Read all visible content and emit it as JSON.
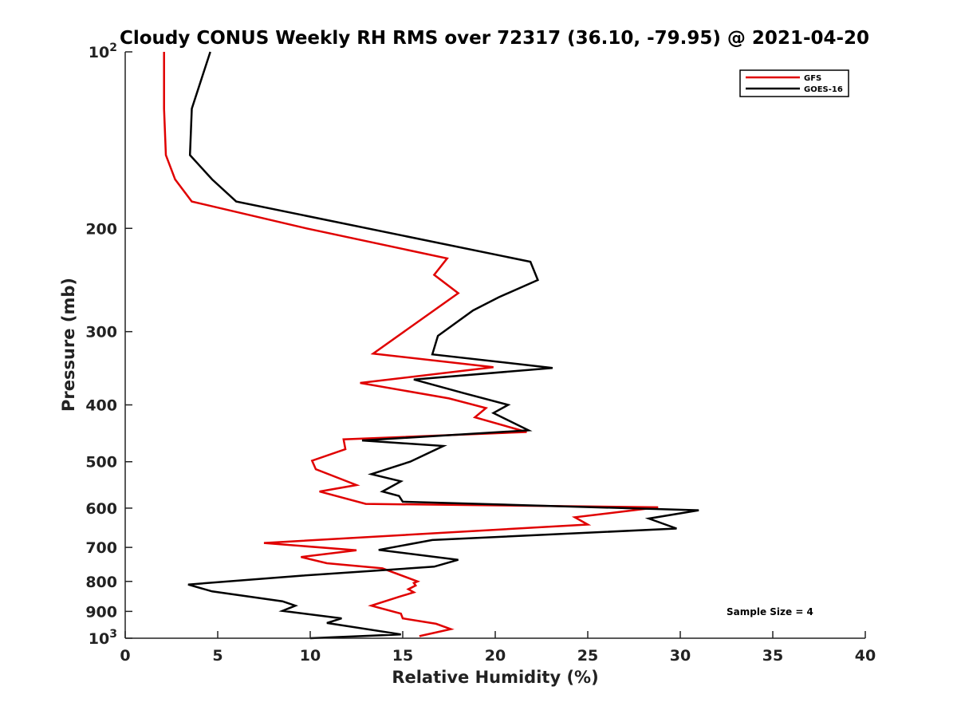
{
  "chart_data": {
    "type": "line",
    "title": "Cloudy CONUS Weekly RH RMS over 72317 (36.10, -79.95) @ 2021-04-20",
    "xlabel": "Relative Humidity (%)",
    "ylabel": "Pressure (mb)",
    "xlim": [
      0,
      40
    ],
    "ylim": [
      1000,
      100
    ],
    "y_scale": "log",
    "y_reversed": true,
    "x_ticks": [
      "0",
      "5",
      "10",
      "15",
      "20",
      "25",
      "30",
      "35",
      "40"
    ],
    "x_tick_values": [
      0,
      5,
      10,
      15,
      20,
      25,
      30,
      35,
      40
    ],
    "y_ticks": [
      {
        "base": "10",
        "exp": "2",
        "label": "",
        "value": 100
      },
      {
        "base": "",
        "exp": "",
        "label": "200",
        "value": 200
      },
      {
        "base": "",
        "exp": "",
        "label": "300",
        "value": 300
      },
      {
        "base": "",
        "exp": "",
        "label": "400",
        "value": 400
      },
      {
        "base": "",
        "exp": "",
        "label": "500",
        "value": 500
      },
      {
        "base": "",
        "exp": "",
        "label": "600",
        "value": 600
      },
      {
        "base": "",
        "exp": "",
        "label": "700",
        "value": 700
      },
      {
        "base": "",
        "exp": "",
        "label": "800",
        "value": 800
      },
      {
        "base": "",
        "exp": "",
        "label": "900",
        "value": 900
      },
      {
        "base": "10",
        "exp": "3",
        "label": "",
        "value": 1000
      }
    ],
    "grid": false,
    "legend_position": "top-right",
    "annotation": "Sample Size = 4",
    "series": [
      {
        "name": "GFS",
        "color": "#e00000",
        "points": [
          [
            2.1,
            100
          ],
          [
            2.1,
            125
          ],
          [
            2.2,
            150
          ],
          [
            2.7,
            165
          ],
          [
            3.6,
            180
          ],
          [
            9.8,
            200
          ],
          [
            17.4,
            225
          ],
          [
            16.7,
            240
          ],
          [
            18.0,
            258
          ],
          [
            13.4,
            327
          ],
          [
            19.9,
            345
          ],
          [
            12.7,
            367
          ],
          [
            17.5,
            390
          ],
          [
            19.5,
            405
          ],
          [
            18.9,
            420
          ],
          [
            21.7,
            445
          ],
          [
            11.8,
            458
          ],
          [
            11.9,
            476
          ],
          [
            10.1,
            498
          ],
          [
            10.3,
            515
          ],
          [
            12.5,
            548
          ],
          [
            10.5,
            562
          ],
          [
            13.0,
            590
          ],
          [
            28.8,
            598
          ],
          [
            24.3,
            622
          ],
          [
            25.0,
            640
          ],
          [
            7.5,
            688
          ],
          [
            12.5,
            708
          ],
          [
            9.5,
            727
          ],
          [
            10.9,
            745
          ],
          [
            13.9,
            760
          ],
          [
            15.8,
            800
          ],
          [
            15.6,
            805
          ],
          [
            15.7,
            813
          ],
          [
            15.3,
            825
          ],
          [
            15.6,
            835
          ],
          [
            14.8,
            850
          ],
          [
            13.3,
            880
          ],
          [
            14.9,
            908
          ],
          [
            15.0,
            925
          ],
          [
            16.8,
            945
          ],
          [
            17.6,
            965
          ],
          [
            15.9,
            992
          ]
        ]
      },
      {
        "name": "GOES-16",
        "color": "#000000",
        "points": [
          [
            4.6,
            100
          ],
          [
            3.6,
            125
          ],
          [
            3.5,
            150
          ],
          [
            4.7,
            165
          ],
          [
            6.0,
            180
          ],
          [
            21.9,
            228
          ],
          [
            22.3,
            245
          ],
          [
            20.2,
            262
          ],
          [
            18.8,
            276
          ],
          [
            16.9,
            305
          ],
          [
            16.6,
            328
          ],
          [
            23.1,
            346
          ],
          [
            15.6,
            362
          ],
          [
            18.3,
            382
          ],
          [
            20.7,
            400
          ],
          [
            19.9,
            413
          ],
          [
            21.8,
            442
          ],
          [
            12.8,
            460
          ],
          [
            17.2,
            470
          ],
          [
            15.4,
            500
          ],
          [
            13.3,
            525
          ],
          [
            14.9,
            540
          ],
          [
            13.9,
            562
          ],
          [
            14.8,
            572
          ],
          [
            15.0,
            585
          ],
          [
            31.0,
            605
          ],
          [
            28.3,
            625
          ],
          [
            29.8,
            650
          ],
          [
            16.6,
            680
          ],
          [
            13.7,
            707
          ],
          [
            18.0,
            735
          ],
          [
            16.7,
            755
          ],
          [
            9.6,
            782
          ],
          [
            3.4,
            810
          ],
          [
            4.7,
            832
          ],
          [
            8.5,
            865
          ],
          [
            9.2,
            880
          ],
          [
            8.5,
            898
          ],
          [
            11.7,
            925
          ],
          [
            10.9,
            942
          ],
          [
            14.9,
            985
          ],
          [
            10.0,
            1000
          ]
        ]
      }
    ]
  }
}
